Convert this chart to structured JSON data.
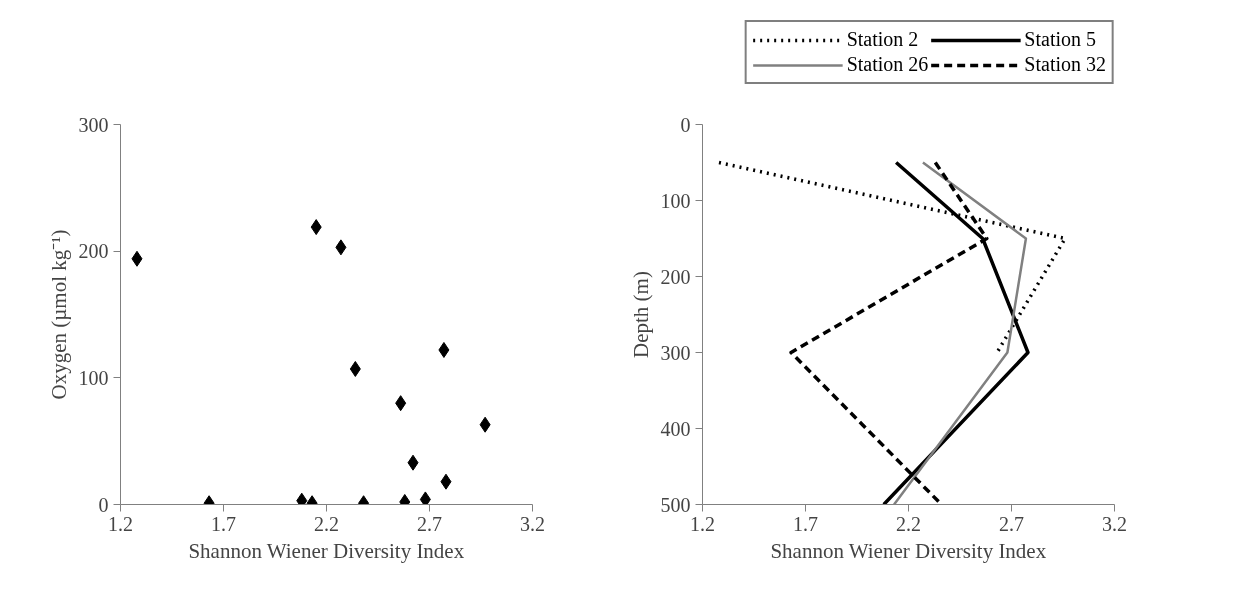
{
  "chart_data": [
    {
      "type": "scatter",
      "xlabel": "Shannon Wiener Diversity Index",
      "ylabel": "Oxygen (µmol kg⁻¹)",
      "marker": "diamond",
      "grid": false,
      "legend": false,
      "xlim": [
        1.2,
        3.2
      ],
      "xticks": [
        1.2,
        1.7,
        2.2,
        2.7,
        3.2
      ],
      "ylim": [
        0,
        300
      ],
      "yticks": [
        0,
        100,
        200,
        300
      ],
      "series": [
        {
          "color": "#000000",
          "x": [
            1.28,
            1.63,
            2.08,
            2.13,
            2.15,
            2.27,
            2.34,
            2.38,
            2.56,
            2.58,
            2.62,
            2.68,
            2.77,
            2.78,
            2.97
          ],
          "values": [
            194,
            1,
            3,
            1,
            219,
            203,
            107,
            1,
            80,
            2,
            33,
            4,
            122,
            18,
            63
          ]
        }
      ]
    },
    {
      "type": "line",
      "xlabel": "Shannon Wiener Diversity Index",
      "ylabel": "Depth (m)",
      "marker": "none",
      "grid": false,
      "legend": "top",
      "xlim": [
        1.2,
        3.2
      ],
      "xticks": [
        1.2,
        1.7,
        2.2,
        2.7,
        3.2
      ],
      "ylim": [
        500,
        0
      ],
      "yticks": [
        0,
        100,
        200,
        300,
        400,
        500
      ],
      "series": [
        {
          "name": "Station 2",
          "color": "#000000",
          "line_style": "dotted",
          "x": [
            1.28,
            2.96,
            2.63
          ],
          "values": [
            50,
            150,
            300
          ]
        },
        {
          "name": "Station 5",
          "color": "#000000",
          "line_style": "solid",
          "x": [
            2.14,
            2.56,
            2.78,
            2.08
          ],
          "values": [
            50,
            150,
            300,
            500
          ]
        },
        {
          "name": "Station 26",
          "color": "#808080",
          "line_style": "solid",
          "x": [
            2.27,
            2.77,
            2.68,
            2.13
          ],
          "values": [
            50,
            150,
            300,
            500
          ]
        },
        {
          "name": "Station 32",
          "color": "#000000",
          "line_style": "dashed",
          "x": [
            2.33,
            2.58,
            1.63,
            2.36
          ],
          "values": [
            50,
            150,
            300,
            500
          ]
        }
      ]
    }
  ]
}
